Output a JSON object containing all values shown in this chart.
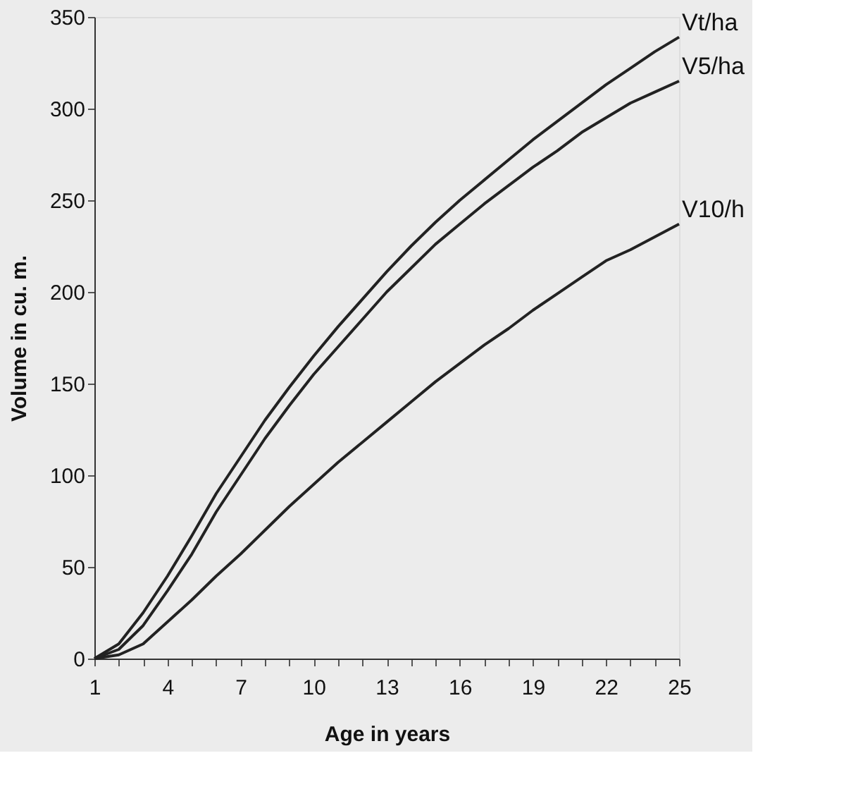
{
  "chart_data": {
    "type": "line",
    "xlabel": "Age in years",
    "ylabel": "Volume in cu. m.",
    "x": [
      1,
      2,
      3,
      4,
      5,
      6,
      7,
      8,
      9,
      10,
      11,
      12,
      13,
      14,
      15,
      16,
      17,
      18,
      19,
      20,
      21,
      22,
      23,
      24,
      25
    ],
    "series": [
      {
        "name": "Vt/ha",
        "color": "#222222",
        "values": [
          0,
          8,
          25,
          45,
          67,
          90,
          110,
          130,
          148,
          165,
          181,
          196,
          211,
          225,
          238,
          250,
          261,
          272,
          283,
          293,
          303,
          313,
          322,
          331,
          339
        ]
      },
      {
        "name": "V5/ha",
        "color": "#222222",
        "values": [
          0,
          5,
          18,
          37,
          57,
          80,
          100,
          120,
          138,
          155,
          170,
          185,
          200,
          213,
          226,
          237,
          248,
          258,
          268,
          277,
          287,
          295,
          303,
          309,
          315
        ]
      },
      {
        "name": "V10/h",
        "color": "#222222",
        "values": [
          0,
          2,
          8,
          20,
          32,
          45,
          57,
          70,
          83,
          95,
          107,
          118,
          129,
          140,
          151,
          161,
          171,
          180,
          190,
          199,
          208,
          217,
          223,
          230,
          237
        ]
      }
    ],
    "xlim": [
      1,
      25
    ],
    "ylim": [
      0,
      350
    ],
    "xticks": [
      1,
      {
        "value": 2,
        "label": null
      },
      {
        "value": 3,
        "label": null
      },
      4,
      {
        "value": 5,
        "label": null
      },
      {
        "value": 6,
        "label": null
      },
      7,
      {
        "value": 8,
        "label": null
      },
      {
        "value": 9,
        "label": null
      },
      10,
      {
        "value": 11,
        "label": null
      },
      {
        "value": 12,
        "label": null
      },
      13,
      {
        "value": 14,
        "label": null
      },
      {
        "value": 15,
        "label": null
      },
      16,
      {
        "value": 17,
        "label": null
      },
      {
        "value": 18,
        "label": null
      },
      19,
      {
        "value": 20,
        "label": null
      },
      {
        "value": 21,
        "label": null
      },
      22,
      {
        "value": 23,
        "label": null
      },
      {
        "value": 24,
        "label": null
      },
      25
    ],
    "yticks": [
      0,
      50,
      100,
      150,
      200,
      250,
      300,
      350
    ],
    "grid": false,
    "legend": false,
    "marker": "none",
    "line_style": "solid"
  }
}
